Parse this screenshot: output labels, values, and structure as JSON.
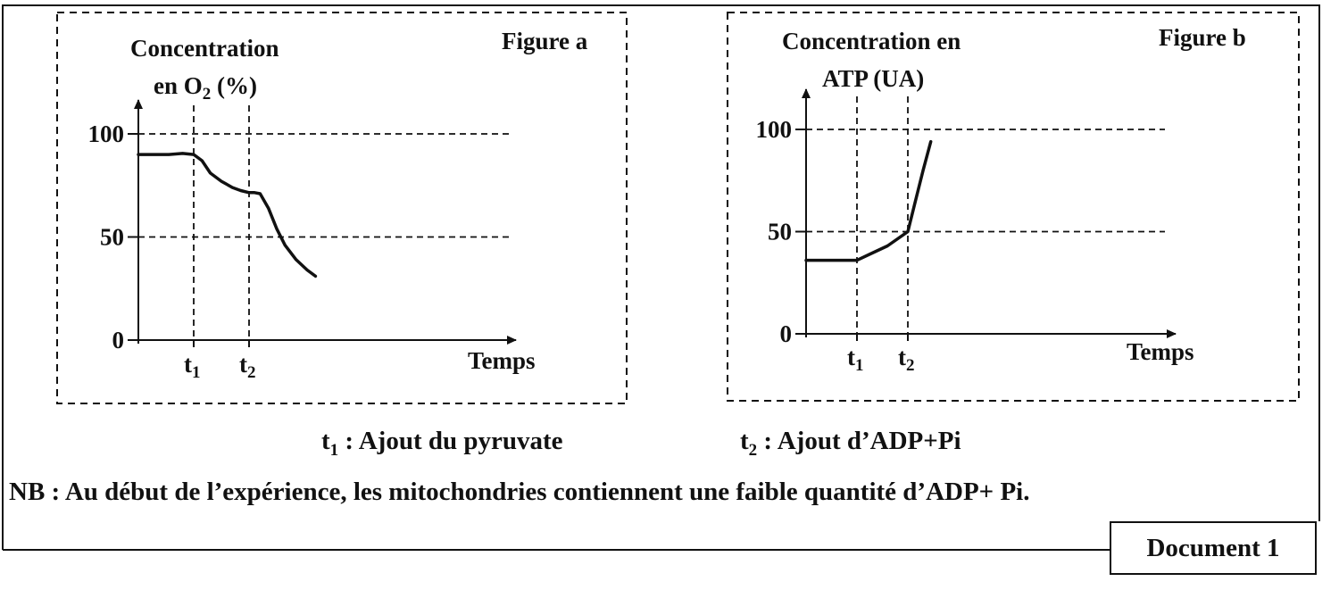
{
  "document": {
    "legend_t1_sym": "t",
    "legend_t1_sub": "1",
    "legend_t1_text": " : Ajout du pyruvate",
    "legend_t2_sym": "t",
    "legend_t2_sub": "2",
    "legend_t2_text": " : Ajout d’ADP+Pi",
    "note": "NB : Au début de l’expérience, les mitochondries contiennent une faible quantité d’ADP+ Pi.",
    "label": "Document 1"
  },
  "chart_data": [
    {
      "type": "line",
      "figure_label": "Figure a",
      "ylabel_line1": "Concentration",
      "ylabel_line2_pre": "en O",
      "ylabel_line2_sub": "2",
      "ylabel_line2_post": " (%)",
      "xlabel": "Temps",
      "ylim": [
        0,
        100
      ],
      "y_ticks": [
        0,
        50,
        100
      ],
      "x_ticks": [
        {
          "sym": "t",
          "sub": "1",
          "x": 1
        },
        {
          "sym": "t",
          "sub": "2",
          "x": 2
        }
      ],
      "xlim": [
        0,
        3.8
      ],
      "series": [
        {
          "x": [
            0,
            0.55,
            0.8,
            1.0,
            1.15,
            1.3,
            1.5,
            1.7,
            1.85,
            2.0,
            2.1,
            2.2,
            2.35,
            2.5,
            2.65,
            2.85,
            3.05,
            3.2
          ],
          "y": [
            90,
            90,
            90.5,
            90,
            87,
            81,
            77,
            74,
            72.5,
            71.5,
            71.5,
            71,
            64,
            54,
            46,
            39,
            34,
            31
          ]
        }
      ]
    },
    {
      "type": "line",
      "figure_label": "Figure b",
      "ylabel_line1": "Concentration en",
      "ylabel_line2_pre": "ATP (UA)",
      "ylabel_line2_sub": "",
      "ylabel_line2_post": "",
      "xlabel": "Temps",
      "ylim": [
        0,
        100
      ],
      "y_ticks": [
        0,
        50,
        100
      ],
      "x_ticks": [
        {
          "sym": "t",
          "sub": "1",
          "x": 1
        },
        {
          "sym": "t",
          "sub": "2",
          "x": 2
        }
      ],
      "xlim": [
        0,
        3.6
      ],
      "series": [
        {
          "x": [
            0,
            0.55,
            1.0,
            1.3,
            1.6,
            2.0,
            2.15,
            2.3,
            2.45
          ],
          "y": [
            36,
            36,
            36,
            39.5,
            43,
            50,
            65,
            80,
            94
          ]
        }
      ]
    }
  ]
}
